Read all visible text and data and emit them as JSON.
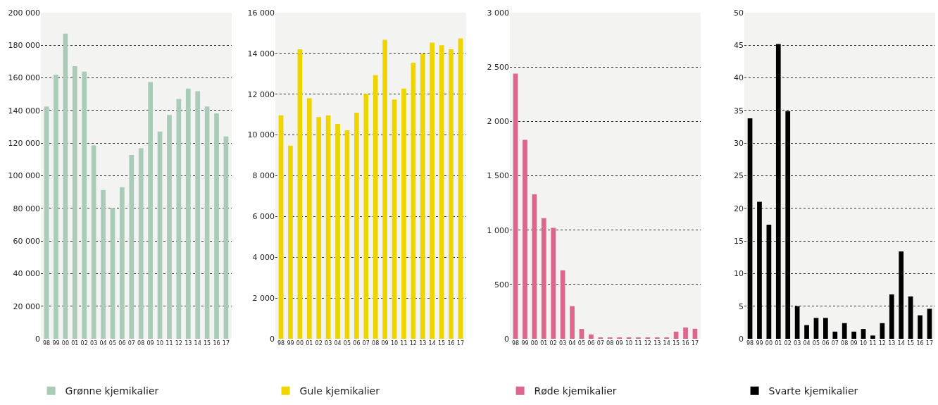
{
  "chart_data": [
    {
      "type": "bar",
      "categories": [
        "98",
        "99",
        "00",
        "01",
        "02",
        "03",
        "04",
        "05",
        "06",
        "07",
        "08",
        "09",
        "10",
        "11",
        "12",
        "13",
        "14",
        "15",
        "16",
        "17"
      ],
      "series": [
        {
          "name": "Grønne kjemikalier",
          "color": "#a9cbb7",
          "values": [
            142400,
            162000,
            187200,
            167200,
            163800,
            118600,
            91300,
            80200,
            93000,
            112700,
            116800,
            157400,
            127100,
            137300,
            147100,
            153500,
            151800,
            142400,
            138200,
            124100
          ]
        }
      ],
      "ylim": [
        0,
        200000
      ],
      "yticks": [
        0,
        {
          "value": 20000,
          "label": "20 000"
        },
        {
          "value": 40000,
          "label": "40 000"
        },
        {
          "value": 60000,
          "label": "60 000"
        },
        {
          "value": 80000,
          "label": "80 000"
        },
        {
          "value": 100000,
          "label": "100 000"
        },
        {
          "value": 120000,
          "label": "120 000"
        },
        {
          "value": 140000,
          "label": "140 000"
        },
        {
          "value": 160000,
          "label": "160 000"
        },
        {
          "value": 180000,
          "label": "180 000"
        },
        {
          "value": 200000,
          "label": "200 000"
        }
      ],
      "grid": "y",
      "legend": "bottom"
    },
    {
      "type": "bar",
      "categories": [
        "98",
        "99",
        "00",
        "01",
        "02",
        "03",
        "04",
        "05",
        "06",
        "07",
        "08",
        "09",
        "10",
        "11",
        "12",
        "13",
        "14",
        "15",
        "16",
        "17"
      ],
      "series": [
        {
          "name": "Gule kjemikalier",
          "color": "#efd500",
          "values": [
            10960,
            9480,
            14200,
            11800,
            10880,
            10960,
            10540,
            10230,
            11090,
            12020,
            12930,
            14670,
            11740,
            12280,
            13550,
            14000,
            14530,
            14400,
            14200,
            14740
          ]
        }
      ],
      "ylim": [
        0,
        16000
      ],
      "yticks": [
        0,
        {
          "value": 2000,
          "label": "2 000"
        },
        {
          "value": 4000,
          "label": "4 000"
        },
        {
          "value": 6000,
          "label": "6 000"
        },
        {
          "value": 8000,
          "label": "8 000"
        },
        {
          "value": 10000,
          "label": "10 000"
        },
        {
          "value": 12000,
          "label": "12 000"
        },
        {
          "value": 14000,
          "label": "14 000"
        },
        {
          "value": 16000,
          "label": "16 000"
        }
      ],
      "grid": "y",
      "legend": "bottom"
    },
    {
      "type": "bar",
      "categories": [
        "98",
        "99",
        "00",
        "01",
        "02",
        "03",
        "04",
        "05",
        "06",
        "07",
        "08",
        "09",
        "10",
        "11",
        "12",
        "13",
        "14",
        "15",
        "16",
        "17"
      ],
      "series": [
        {
          "name": "Røde kjemikalier",
          "color": "#dd668f",
          "values": [
            2440,
            1830,
            1330,
            1110,
            1020,
            630,
            300,
            90,
            40,
            13,
            13,
            13,
            13,
            13,
            13,
            13,
            13,
            66,
            104,
            92
          ]
        }
      ],
      "ylim": [
        0,
        3000
      ],
      "yticks": [
        0,
        500,
        {
          "value": 1000,
          "label": "1 000"
        },
        {
          "value": 1500,
          "label": "1 500"
        },
        {
          "value": 2000,
          "label": "2 000"
        },
        {
          "value": 2500,
          "label": "2 500"
        },
        {
          "value": 3000,
          "label": "3 000"
        }
      ],
      "grid": "y",
      "legend": "bottom"
    },
    {
      "type": "bar",
      "categories": [
        "98",
        "99",
        "00",
        "01",
        "02",
        "03",
        "04",
        "05",
        "06",
        "07",
        "08",
        "09",
        "10",
        "11",
        "12",
        "13",
        "14",
        "15",
        "16",
        "17"
      ],
      "series": [
        {
          "name": "Svarte kjemikalier",
          "color": "#000000",
          "values": [
            33.8,
            21.0,
            17.5,
            45.2,
            34.9,
            5.0,
            2.1,
            3.2,
            3.2,
            1.1,
            2.4,
            1.1,
            1.5,
            0.5,
            2.4,
            6.8,
            13.4,
            6.5,
            3.6,
            4.6
          ]
        }
      ],
      "ylim": [
        0,
        50
      ],
      "yticks": [
        0,
        5,
        10,
        15,
        20,
        25,
        30,
        35,
        40,
        45,
        50
      ],
      "grid": "y",
      "legend": "bottom"
    }
  ]
}
